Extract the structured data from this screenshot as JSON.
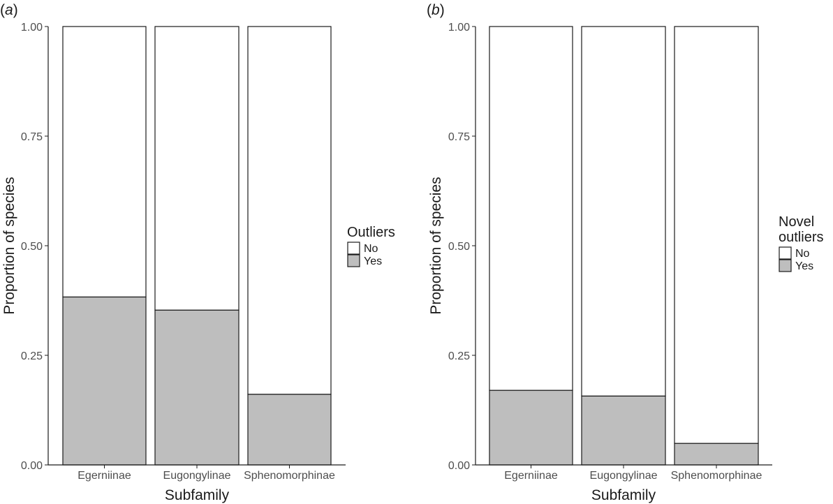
{
  "colors": {
    "yes": "#bebebe",
    "no": "#ffffff",
    "stroke": "#1a1a1a"
  },
  "chart_data": [
    {
      "type": "bar",
      "stacked": true,
      "panel": "a",
      "categories": [
        "Egerniinae",
        "Eugongylinae",
        "Sphenomorphinae"
      ],
      "series": [
        {
          "name": "Yes",
          "values": [
            0.383,
            0.353,
            0.161
          ]
        },
        {
          "name": "No",
          "values": [
            0.617,
            0.647,
            0.839
          ]
        }
      ],
      "title": "",
      "xlabel": "Subfamily",
      "ylabel": "Proportion of species",
      "ylim": [
        0,
        1
      ],
      "yticks": [
        "0.00",
        "0.25",
        "0.50",
        "0.75",
        "1.00"
      ],
      "legend_title": [
        "Outliers"
      ],
      "legend_items": [
        "No",
        "Yes"
      ],
      "legend_position": "right",
      "grid": false
    },
    {
      "type": "bar",
      "stacked": true,
      "panel": "b",
      "categories": [
        "Egerniinae",
        "Eugongylinae",
        "Sphenomorphinae"
      ],
      "series": [
        {
          "name": "Yes",
          "values": [
            0.17,
            0.157,
            0.049
          ]
        },
        {
          "name": "No",
          "values": [
            0.83,
            0.843,
            0.951
          ]
        }
      ],
      "title": "",
      "xlabel": "Subfamily",
      "ylabel": "Proportion of species",
      "ylim": [
        0,
        1
      ],
      "yticks": [
        "0.00",
        "0.25",
        "0.50",
        "0.75",
        "1.00"
      ],
      "legend_title": [
        "Novel",
        "outliers"
      ],
      "legend_items": [
        "No",
        "Yes"
      ],
      "legend_position": "right",
      "grid": false
    }
  ]
}
